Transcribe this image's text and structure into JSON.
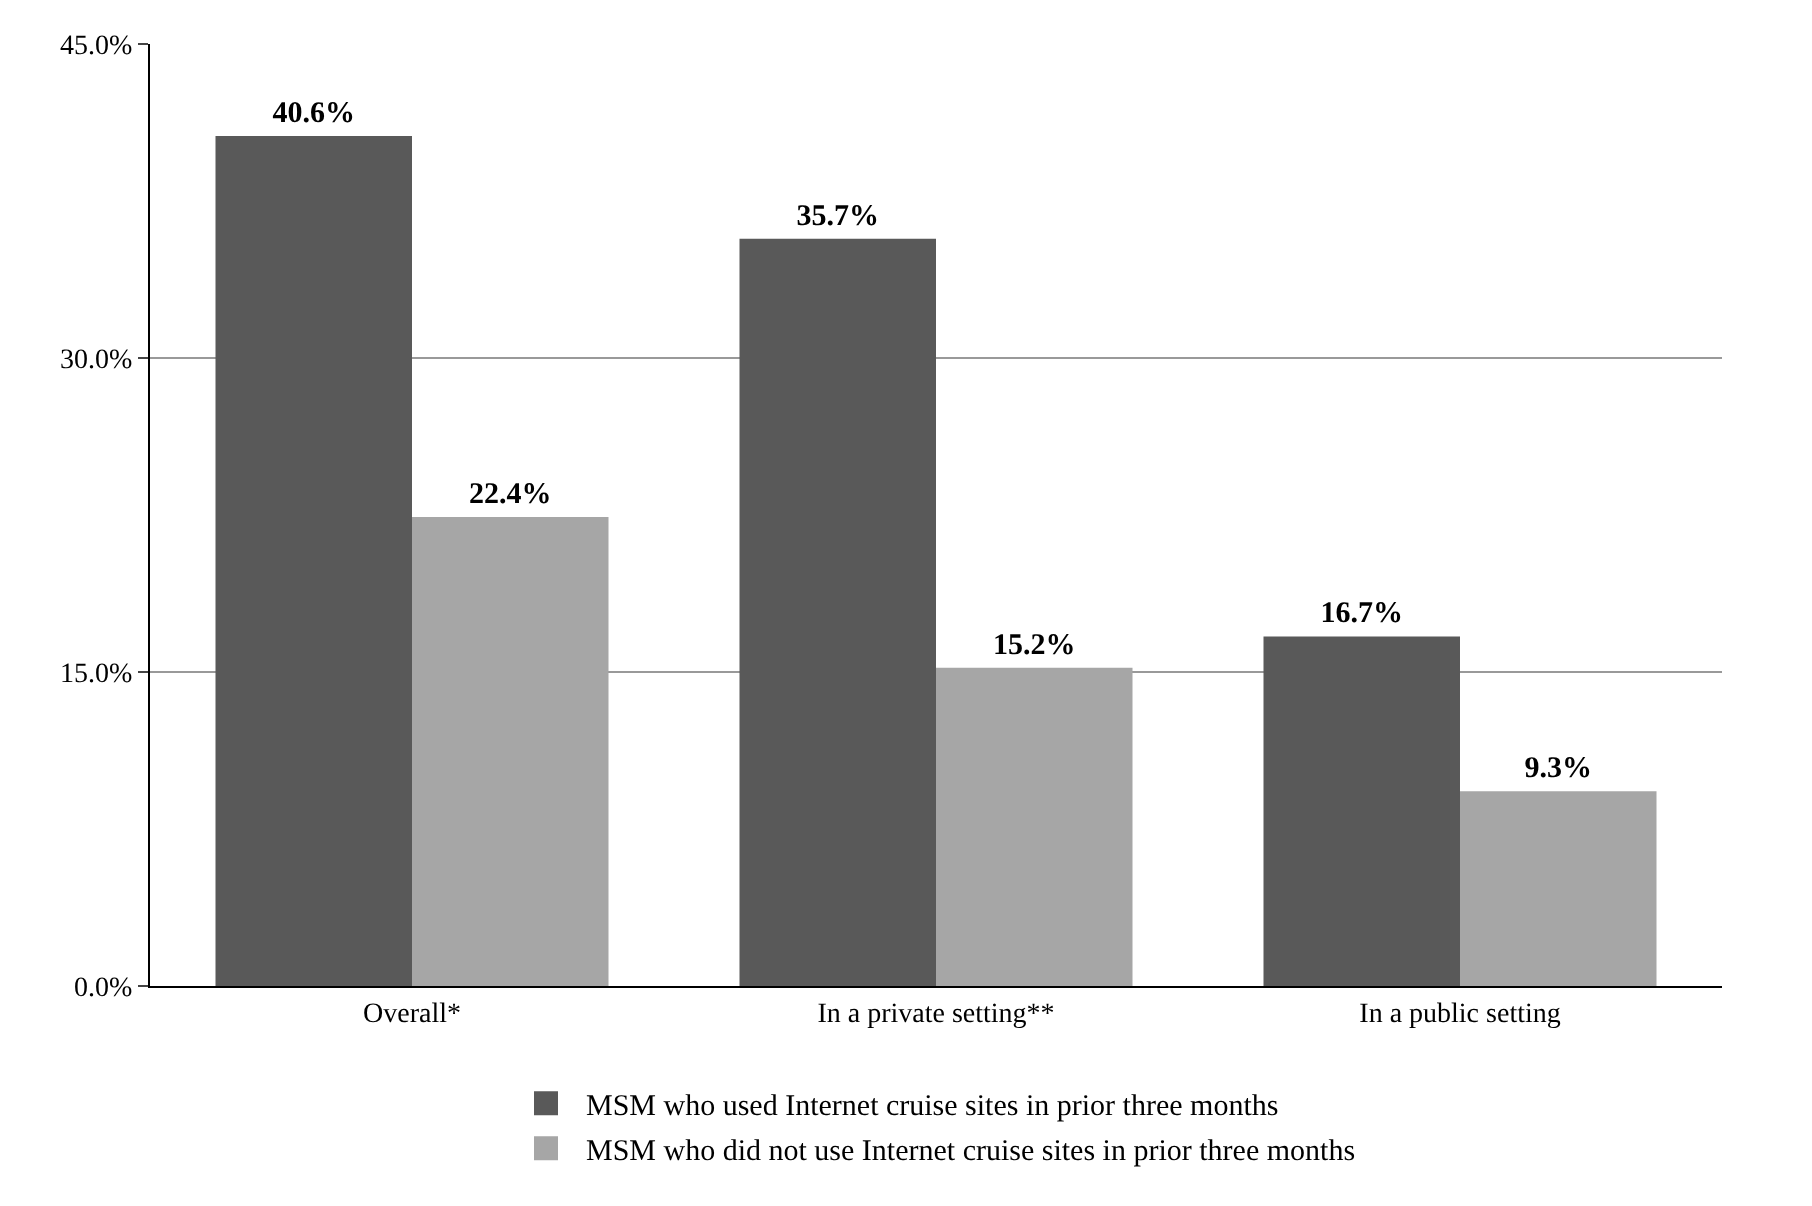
{
  "chart_data": {
    "type": "bar",
    "categories": [
      "Overall*",
      "In a private setting**",
      "In a public setting"
    ],
    "series": [
      {
        "name": "MSM who used Internet cruise sites in prior three months",
        "color": "#595959",
        "values": [
          40.6,
          35.7,
          16.7
        ],
        "value_labels": [
          "40.6%",
          "35.7%",
          "16.7%"
        ]
      },
      {
        "name": "MSM who did not use Internet cruise sites in prior three months",
        "color": "#a6a6a6",
        "values": [
          22.4,
          15.2,
          9.3
        ],
        "value_labels": [
          "22.4%",
          "15.2%",
          "9.3%"
        ]
      }
    ],
    "ylim": [
      0,
      45
    ],
    "yticks": [
      {
        "value": 0,
        "label": "0.0%"
      },
      {
        "value": 15,
        "label": "15.0%"
      },
      {
        "value": 30,
        "label": "30.0%"
      },
      {
        "value": 45,
        "label": "45.0%"
      }
    ],
    "grid": "y",
    "legend": "bottom"
  }
}
